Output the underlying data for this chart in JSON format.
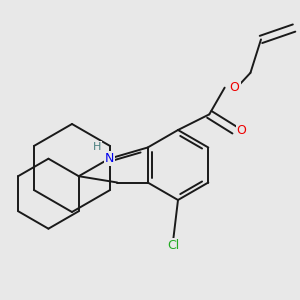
{
  "background_color": "#e8e8e8",
  "bond_color": "#1a1a1a",
  "bond_width": 1.4,
  "atom_colors": {
    "N": "#0000ee",
    "H": "#4a8080",
    "O": "#ee0000",
    "Cl": "#22aa22",
    "C": "#1a1a1a"
  },
  "figsize": [
    3.0,
    3.0
  ],
  "dpi": 100,
  "xlim": [
    0.0,
    3.0
  ],
  "ylim": [
    0.3,
    3.3
  ]
}
